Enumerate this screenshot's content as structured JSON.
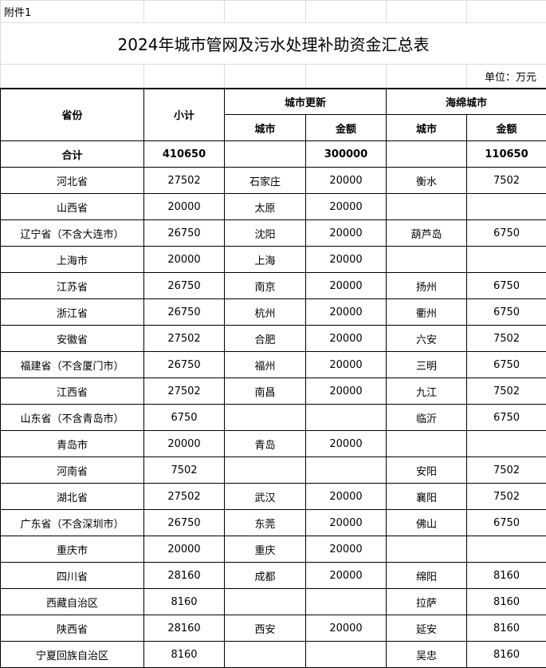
{
  "attachment_label": "附件1",
  "title": "2024年城市管网及污水处理补助资金汇总表",
  "unit_label": "单位：万元",
  "header": {
    "province": "省份",
    "subtotal": "小计",
    "urban_renewal": "城市更新",
    "sponge_city": "海绵城市",
    "city": "城市",
    "amount": "金额"
  },
  "total": {
    "label": "合计",
    "subtotal": "410650",
    "renewal_amount": "300000",
    "sponge_amount": "110650"
  },
  "rows": [
    {
      "province": "河北省",
      "subtotal": "27502",
      "renewal_city": "石家庄",
      "renewal_amount": "20000",
      "sponge_city": "衡水",
      "sponge_amount": "7502"
    },
    {
      "province": "山西省",
      "subtotal": "20000",
      "renewal_city": "太原",
      "renewal_amount": "20000",
      "sponge_city": "",
      "sponge_amount": ""
    },
    {
      "province": "辽宁省（不含大连市）",
      "subtotal": "26750",
      "renewal_city": "沈阳",
      "renewal_amount": "20000",
      "sponge_city": "葫芦岛",
      "sponge_amount": "6750"
    },
    {
      "province": "上海市",
      "subtotal": "20000",
      "renewal_city": "上海",
      "renewal_amount": "20000",
      "sponge_city": "",
      "sponge_amount": ""
    },
    {
      "province": "江苏省",
      "subtotal": "26750",
      "renewal_city": "南京",
      "renewal_amount": "20000",
      "sponge_city": "扬州",
      "sponge_amount": "6750"
    },
    {
      "province": "浙江省",
      "subtotal": "26750",
      "renewal_city": "杭州",
      "renewal_amount": "20000",
      "sponge_city": "衢州",
      "sponge_amount": "6750"
    },
    {
      "province": "安徽省",
      "subtotal": "27502",
      "renewal_city": "合肥",
      "renewal_amount": "20000",
      "sponge_city": "六安",
      "sponge_amount": "7502"
    },
    {
      "province": "福建省（不含厦门市）",
      "subtotal": "26750",
      "renewal_city": "福州",
      "renewal_amount": "20000",
      "sponge_city": "三明",
      "sponge_amount": "6750"
    },
    {
      "province": "江西省",
      "subtotal": "27502",
      "renewal_city": "南昌",
      "renewal_amount": "20000",
      "sponge_city": "九江",
      "sponge_amount": "7502"
    },
    {
      "province": "山东省（不含青岛市）",
      "subtotal": "6750",
      "renewal_city": "",
      "renewal_amount": "",
      "sponge_city": "临沂",
      "sponge_amount": "6750"
    },
    {
      "province": "青岛市",
      "subtotal": "20000",
      "renewal_city": "青岛",
      "renewal_amount": "20000",
      "sponge_city": "",
      "sponge_amount": ""
    },
    {
      "province": "河南省",
      "subtotal": "7502",
      "renewal_city": "",
      "renewal_amount": "",
      "sponge_city": "安阳",
      "sponge_amount": "7502"
    },
    {
      "province": "湖北省",
      "subtotal": "27502",
      "renewal_city": "武汉",
      "renewal_amount": "20000",
      "sponge_city": "襄阳",
      "sponge_amount": "7502"
    },
    {
      "province": "广东省（不含深圳市）",
      "subtotal": "26750",
      "renewal_city": "东莞",
      "renewal_amount": "20000",
      "sponge_city": "佛山",
      "sponge_amount": "6750"
    },
    {
      "province": "重庆市",
      "subtotal": "20000",
      "renewal_city": "重庆",
      "renewal_amount": "20000",
      "sponge_city": "",
      "sponge_amount": ""
    },
    {
      "province": "四川省",
      "subtotal": "28160",
      "renewal_city": "成都",
      "renewal_amount": "20000",
      "sponge_city": "绵阳",
      "sponge_amount": "8160"
    },
    {
      "province": "西藏自治区",
      "subtotal": "8160",
      "renewal_city": "",
      "renewal_amount": "",
      "sponge_city": "拉萨",
      "sponge_amount": "8160"
    },
    {
      "province": "陕西省",
      "subtotal": "28160",
      "renewal_city": "西安",
      "renewal_amount": "20000",
      "sponge_city": "延安",
      "sponge_amount": "8160"
    },
    {
      "province": "宁夏回族自治区",
      "subtotal": "8160",
      "renewal_city": "",
      "renewal_amount": "",
      "sponge_city": "吴忠",
      "sponge_amount": "8160"
    }
  ]
}
